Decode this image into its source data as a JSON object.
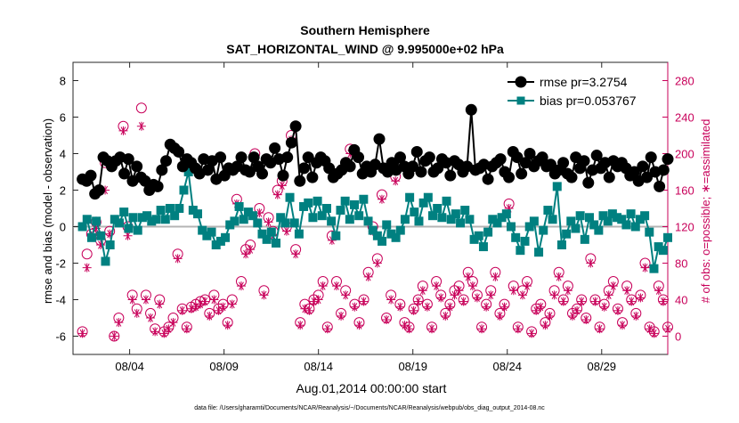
{
  "chart_data": {
    "type": "line",
    "title": "Southern Hemisphere",
    "subtitle": "SAT_HORIZONTAL_WIND @ 9.995000e+02 hPa",
    "xlabel": "Aug.01,2014 00:00:00 start",
    "ylabel": "rmse and bias (model - observation)",
    "y2label": "# of obs: o=possible; ∗=assimilated",
    "footnote": "data file: /Users/gharamti/Documents/NCAR/Reanalysis/~/Documents/NCAR/Reanalysis/webpub/obs_diag_output_2014-08.nc",
    "xlim": [
      0,
      31.5
    ],
    "ylim": [
      -7,
      9
    ],
    "y2lim": [
      -20,
      300
    ],
    "x_ticks": [
      3,
      8,
      13,
      18,
      23,
      28
    ],
    "x_tick_labels": [
      "08/04",
      "08/09",
      "08/14",
      "08/19",
      "08/24",
      "08/29"
    ],
    "y_ticks": [
      -6,
      -4,
      -2,
      0,
      2,
      4,
      6,
      8
    ],
    "y2_ticks": [
      0,
      40,
      80,
      120,
      160,
      200,
      240,
      280
    ],
    "zero_line": 0,
    "legend_position": "top-right",
    "colors": {
      "rmse": "#000000",
      "bias": "#008080",
      "obs": "#c8005a",
      "zero": "#b4b4b4"
    },
    "series": [
      {
        "name": "rmse pr=3.2754",
        "axis": "left",
        "marker": "circle",
        "values": [
          2.6,
          2.5,
          2.8,
          1.8,
          2.0,
          3.8,
          3.6,
          3.3,
          3.6,
          3.8,
          2.9,
          3.7,
          2.5,
          3.3,
          2.7,
          2.5,
          2.0,
          2.3,
          2.2,
          3.1,
          3.6,
          4.5,
          4.3,
          4.1,
          3.3,
          3.7,
          3.5,
          3.2,
          2.9,
          3.7,
          3.1,
          3.6,
          2.6,
          3.8,
          2.8,
          3.2,
          3.1,
          3.3,
          3.8,
          3.1,
          3.0,
          3.8,
          3.3,
          2.9,
          3.7,
          3.5,
          4.3,
          3.7,
          2.8,
          3.8,
          4.6,
          5.5,
          2.5,
          3.2,
          3.8,
          2.7,
          3.5,
          3.8,
          3.6,
          3.2,
          2.7,
          2.9,
          3.1,
          3.5,
          3.3,
          4.2,
          3.8,
          2.9,
          3.3,
          3.0,
          3.4,
          4.8,
          3.2,
          3.0,
          3.5,
          3.1,
          3.8,
          3.3,
          2.9,
          3.3,
          4.1,
          3.0,
          3.6,
          3.8,
          3.0,
          3.2,
          3.7,
          3.5,
          2.8,
          3.6,
          3.4,
          3.0,
          3.3,
          6.4,
          3.1,
          3.2,
          3.4,
          2.6,
          3.3,
          3.5,
          3.7,
          3.0,
          2.7,
          4.1,
          3.8,
          2.9,
          3.5,
          4.0,
          3.3,
          3.6,
          3.8,
          3.3,
          3.4,
          2.9,
          3.1,
          3.5,
          2.9,
          2.7,
          3.8,
          3.2,
          3.6,
          2.4,
          3.1,
          3.9,
          3.2,
          3.5,
          2.7,
          3.6,
          3.3,
          3.5,
          3.2,
          2.8,
          3.0,
          2.5,
          3.3,
          2.7,
          3.8,
          3.0,
          2.2,
          3.1,
          3.7
        ]
      },
      {
        "name": "bias pr=0.053767",
        "axis": "left",
        "marker": "square",
        "values": [
          0.0,
          0.4,
          -0.6,
          0.3,
          -0.5,
          -1.9,
          -1.0,
          0.4,
          0.2,
          0.8,
          -0.1,
          0.5,
          -0.2,
          0.5,
          0.6,
          0.3,
          0.4,
          0.9,
          0.4,
          1.0,
          0.6,
          1.0,
          2.0,
          3.0,
          0.9,
          0.7,
          -0.2,
          -0.5,
          -0.3,
          -1.0,
          -0.8,
          -0.6,
          0.1,
          0.3,
          1.1,
          0.4,
          0.8,
          0.6,
          0.2,
          -0.4,
          -0.7,
          -0.3,
          -0.9,
          0.5,
          0.2,
          1.6,
          0.2,
          -0.4,
          1.1,
          1.3,
          0.5,
          1.4,
          0.6,
          1.0,
          0.3,
          -0.5,
          0.9,
          1.4,
          0.4,
          1.2,
          0.6,
          1.5,
          0.3,
          -0.2,
          -0.5,
          -0.8,
          0.1,
          -0.4,
          -0.6,
          -0.2,
          0.4,
          1.6,
          0.8,
          0.3,
          1.3,
          1.6,
          0.6,
          1.0,
          0.5,
          1.4,
          0.4,
          0.7,
          0.2,
          0.9,
          0.4,
          -0.7,
          -0.5,
          -1.1,
          -0.3,
          0.4,
          0.2,
          0.5,
          0.7,
          0.0,
          -0.6,
          -1.3,
          -0.8,
          0.0,
          0.3,
          -1.4,
          -0.2,
          0.9,
          0.4,
          2.2,
          -1.0,
          -0.4,
          0.3,
          -0.1,
          0.6,
          -0.7,
          0.5,
          0.1,
          -0.2,
          0.6,
          0.3,
          0.7,
          0.5,
          0.4,
          0.1,
          0.7,
          0.0,
          0.4,
          0.6,
          -0.3,
          -2.3,
          -1.1,
          -1.3,
          -0.6
        ]
      },
      {
        "name": "possible",
        "axis": "right",
        "marker": "open-circle",
        "values": [
          5,
          90,
          112,
          125,
          105,
          190,
          115,
          0,
          20,
          230,
          120,
          45,
          30,
          250,
          45,
          25,
          8,
          40,
          5,
          10,
          20,
          90,
          30,
          10,
          32,
          35,
          38,
          40,
          25,
          45,
          30,
          35,
          15,
          40,
          150,
          60,
          95,
          100,
          200,
          140,
          50,
          130,
          115,
          160,
          170,
          120,
          220,
          95,
          15,
          35,
          30,
          40,
          45,
          60,
          10,
          110,
          60,
          25,
          50,
          205,
          35,
          15,
          40,
          70,
          120,
          85,
          155,
          20,
          45,
          175,
          35,
          15,
          10,
          30,
          40,
          55,
          35,
          10,
          60,
          45,
          25,
          35,
          50,
          55,
          40,
          70,
          60,
          45,
          10,
          35,
          50,
          70,
          25,
          35,
          145,
          55,
          10,
          50,
          60,
          5,
          30,
          35,
          15,
          25,
          50,
          70,
          40,
          55,
          25,
          30,
          40,
          20,
          85,
          40,
          10,
          35,
          50,
          60,
          30,
          15,
          55,
          40,
          25,
          45,
          80,
          10,
          5,
          55,
          40,
          10
        ]
      },
      {
        "name": "assimilated",
        "axis": "right",
        "marker": "asterisk",
        "values": [
          3,
          75,
          110,
          118,
          100,
          160,
          112,
          0,
          15,
          225,
          110,
          40,
          25,
          230,
          40,
          20,
          5,
          35,
          3,
          8,
          15,
          85,
          28,
          8,
          30,
          32,
          35,
          38,
          22,
          40,
          28,
          32,
          12,
          35,
          145,
          55,
          90,
          95,
          195,
          135,
          45,
          125,
          110,
          155,
          165,
          115,
          215,
          90,
          12,
          30,
          28,
          38,
          40,
          55,
          8,
          105,
          55,
          22,
          45,
          200,
          32,
          12,
          38,
          65,
          115,
          80,
          150,
          18,
          40,
          170,
          32,
          12,
          8,
          28,
          38,
          50,
          32,
          8,
          55,
          42,
          22,
          32,
          45,
          50,
          38,
          65,
          55,
          42,
          8,
          32,
          45,
          65,
          22,
          32,
          140,
          50,
          8,
          45,
          55,
          3,
          28,
          32,
          12,
          22,
          45,
          65,
          38,
          50,
          22,
          28,
          38,
          18,
          80,
          38,
          8,
          32,
          45,
          55,
          28,
          12,
          50,
          38,
          22,
          42,
          75,
          8,
          3,
          50,
          38,
          8
        ]
      }
    ]
  }
}
